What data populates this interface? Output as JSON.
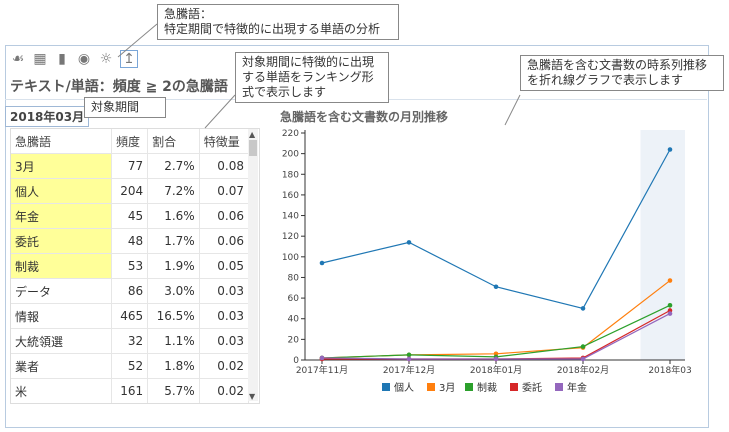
{
  "callouts": {
    "top_title": "急騰語：",
    "top_body": "特定期間で特徴的に出現する単語の分析",
    "ranking": "対象期間に特徴的に出現する単語をランキング形式で表示します",
    "period": "対象期間",
    "chart": "急騰語を含む文書数の時系列推移を折れ線グラフで表示します"
  },
  "toolbar": {
    "icons": [
      "cluster-icon",
      "table-icon",
      "bar-chart-icon",
      "binoculars-icon",
      "lightbulb-icon",
      "surge-icon"
    ]
  },
  "title": "テキスト/単語：頻度 ≧ 2の急騰語",
  "period": "2018年03月",
  "table": {
    "headers": [
      "急騰語",
      "頻度",
      "割合",
      "特徴量"
    ],
    "rows": [
      [
        "3月",
        "77",
        "2.7%",
        "0.08"
      ],
      [
        "個人",
        "204",
        "7.2%",
        "0.07"
      ],
      [
        "年金",
        "45",
        "1.6%",
        "0.06"
      ],
      [
        "委託",
        "48",
        "1.7%",
        "0.06"
      ],
      [
        "制裁",
        "53",
        "1.9%",
        "0.05"
      ],
      [
        "データ",
        "86",
        "3.0%",
        "0.03"
      ],
      [
        "情報",
        "465",
        "16.5%",
        "0.03"
      ],
      [
        "大統領選",
        "32",
        "1.1%",
        "0.03"
      ],
      [
        "業者",
        "52",
        "1.8%",
        "0.02"
      ],
      [
        "米",
        "161",
        "5.7%",
        "0.02"
      ]
    ],
    "highlighted_rows": 5
  },
  "chart_data": {
    "type": "line",
    "title": "急騰語を含む文書数の月別推移",
    "x": [
      "2017年11月",
      "2017年12月",
      "2018年01月",
      "2018年02月",
      "2018年03"
    ],
    "ylim": [
      0,
      220
    ],
    "yticks": [
      0,
      20,
      40,
      60,
      80,
      100,
      120,
      140,
      160,
      180,
      200,
      220
    ],
    "highlight": "2018年03",
    "series": [
      {
        "name": "個人",
        "color": "#1f77b4",
        "values": [
          94,
          114,
          71,
          50,
          204
        ]
      },
      {
        "name": "3月",
        "color": "#ff7f0e",
        "values": [
          2,
          5,
          6,
          12,
          77
        ]
      },
      {
        "name": "制裁",
        "color": "#2ca02c",
        "values": [
          2,
          5,
          3,
          13,
          53
        ]
      },
      {
        "name": "委託",
        "color": "#d62728",
        "values": [
          1,
          1,
          1,
          2,
          48
        ]
      },
      {
        "name": "年金",
        "color": "#9467bd",
        "values": [
          2,
          1,
          1,
          1,
          45
        ]
      }
    ]
  }
}
